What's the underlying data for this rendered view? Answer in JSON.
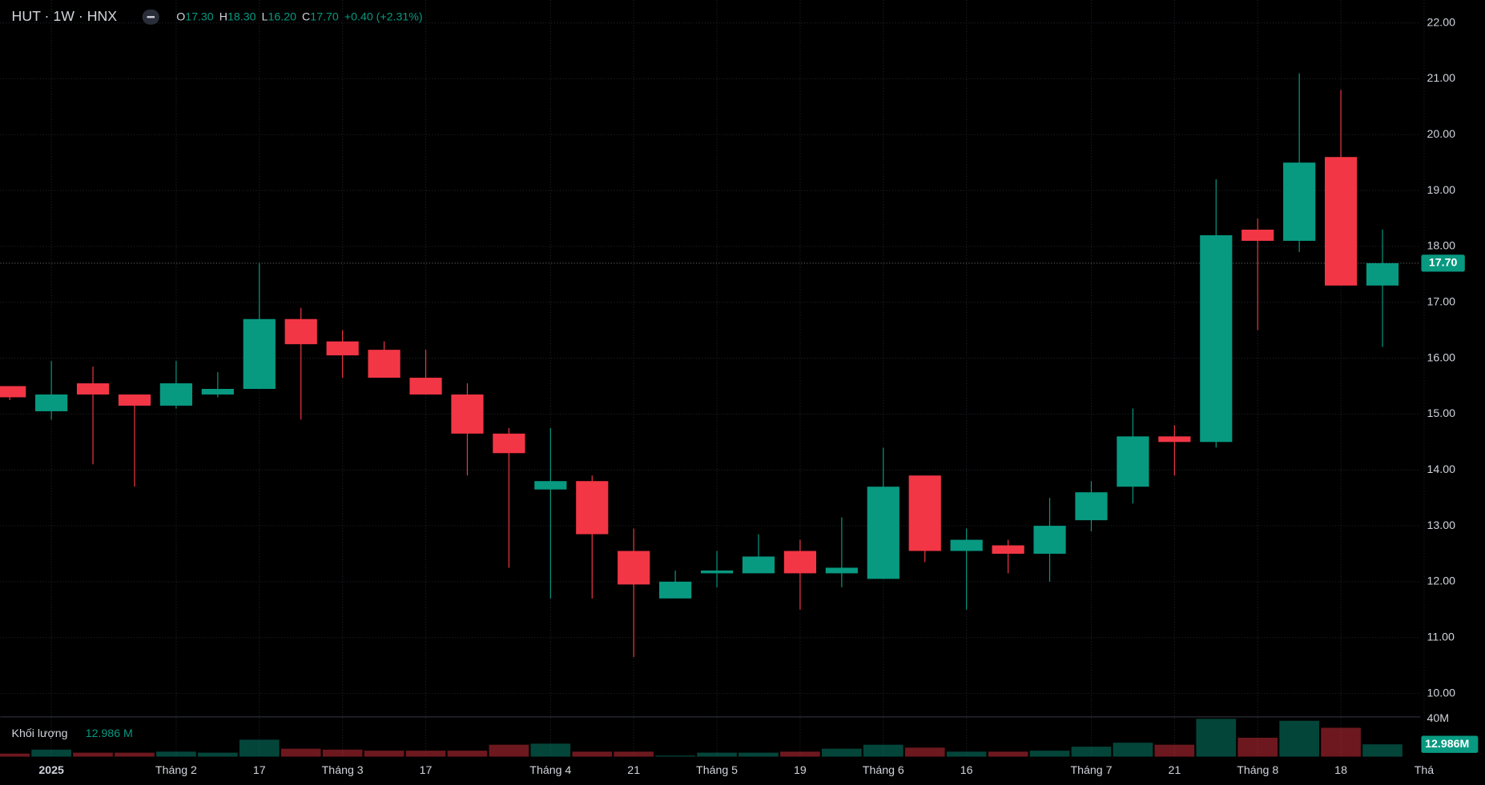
{
  "header": {
    "symbol": "HUT · 1W · HNX",
    "open_label": "O",
    "open": "17.30",
    "high_label": "H",
    "high": "18.30",
    "low_label": "L",
    "low": "16.20",
    "close_label": "C",
    "close": "17.70",
    "change": "+0.40 (+2.31%)"
  },
  "volume_pane": {
    "title": "Khối lượng",
    "last": "12.986 M",
    "last_tag": "12.986M"
  },
  "price_tag": "17.70",
  "chart_data": {
    "type": "candlestick",
    "categories": [
      null,
      "2025",
      null,
      null,
      "Tháng 2",
      null,
      "17",
      null,
      "Tháng 3",
      null,
      "17",
      null,
      null,
      "Tháng 4",
      null,
      "21",
      null,
      "Tháng 5",
      null,
      "19",
      null,
      "Tháng 6",
      null,
      "16",
      null,
      null,
      "Tháng 7",
      null,
      "21",
      null,
      "Tháng 8",
      null,
      "18",
      null,
      "Thá"
    ],
    "open": [
      15.5,
      15.05,
      15.55,
      15.35,
      15.15,
      15.35,
      15.45,
      16.7,
      16.3,
      16.15,
      15.65,
      15.35,
      14.65,
      13.65,
      13.8,
      12.55,
      11.7,
      12.15,
      12.15,
      12.55,
      12.15,
      12.05,
      13.9,
      12.55,
      12.65,
      12.5,
      13.1,
      13.7,
      14.6,
      14.5,
      18.3,
      18.1,
      19.6,
      17.3,
      null
    ],
    "high": [
      15.5,
      15.95,
      15.85,
      15.35,
      15.95,
      15.75,
      17.7,
      16.9,
      16.5,
      16.3,
      16.15,
      15.55,
      14.75,
      14.75,
      13.9,
      12.95,
      12.2,
      12.55,
      12.85,
      12.75,
      13.15,
      14.4,
      13.9,
      12.95,
      12.75,
      13.5,
      13.8,
      15.1,
      14.8,
      19.2,
      18.5,
      21.1,
      20.8,
      18.3,
      null
    ],
    "low": [
      15.25,
      14.9,
      14.1,
      13.7,
      15.1,
      15.3,
      15.45,
      14.9,
      15.65,
      15.65,
      15.35,
      13.9,
      12.25,
      11.7,
      11.7,
      10.65,
      11.7,
      11.9,
      12.15,
      11.5,
      11.9,
      12.05,
      12.35,
      11.5,
      12.15,
      12.0,
      12.9,
      13.4,
      13.9,
      14.4,
      16.5,
      17.9,
      17.3,
      16.2,
      null
    ],
    "close": [
      15.3,
      15.35,
      15.35,
      15.15,
      15.55,
      15.45,
      16.7,
      16.25,
      16.05,
      15.65,
      15.35,
      14.65,
      14.3,
      13.8,
      12.85,
      11.95,
      12.0,
      12.2,
      12.45,
      12.15,
      12.25,
      13.7,
      12.55,
      12.75,
      12.5,
      13.0,
      13.6,
      14.6,
      14.5,
      18.2,
      18.1,
      19.5,
      17.3,
      17.7,
      null
    ],
    "volume": [
      3.2,
      7.4,
      4.2,
      4.2,
      5.3,
      4.2,
      17.9,
      8.4,
      7.4,
      6.3,
      6.3,
      6.3,
      12.6,
      13.7,
      5.3,
      5.3,
      1.1,
      4.2,
      4.2,
      5.3,
      8.4,
      12.6,
      9.5,
      5.3,
      5.3,
      6.3,
      10.5,
      14.7,
      12.6,
      40,
      20,
      37.9,
      30.5,
      12.986,
      null
    ],
    "up_color": "#089981",
    "down_color": "#f23645",
    "ylim": [
      9.58,
      22.41
    ],
    "yticks": [
      {
        "value": 10,
        "label": "10.00"
      },
      {
        "value": 11,
        "label": "11.00"
      },
      {
        "value": 12,
        "label": "12.00"
      },
      {
        "value": 13,
        "label": "13.00"
      },
      {
        "value": 14,
        "label": "14.00"
      },
      {
        "value": 15,
        "label": "15.00"
      },
      {
        "value": 16,
        "label": "16.00"
      },
      {
        "value": 17,
        "label": "17.00"
      },
      {
        "value": 18,
        "label": "18.00"
      },
      {
        "value": 19,
        "label": "19.00"
      },
      {
        "value": 20,
        "label": "20.00"
      },
      {
        "value": 21,
        "label": "21.00"
      },
      {
        "value": 22,
        "label": "22.00"
      }
    ],
    "vlim": [
      0,
      42
    ],
    "vticks": [
      {
        "value": 40,
        "label": "40M"
      }
    ],
    "last_price": 17.7,
    "grid": true
  }
}
